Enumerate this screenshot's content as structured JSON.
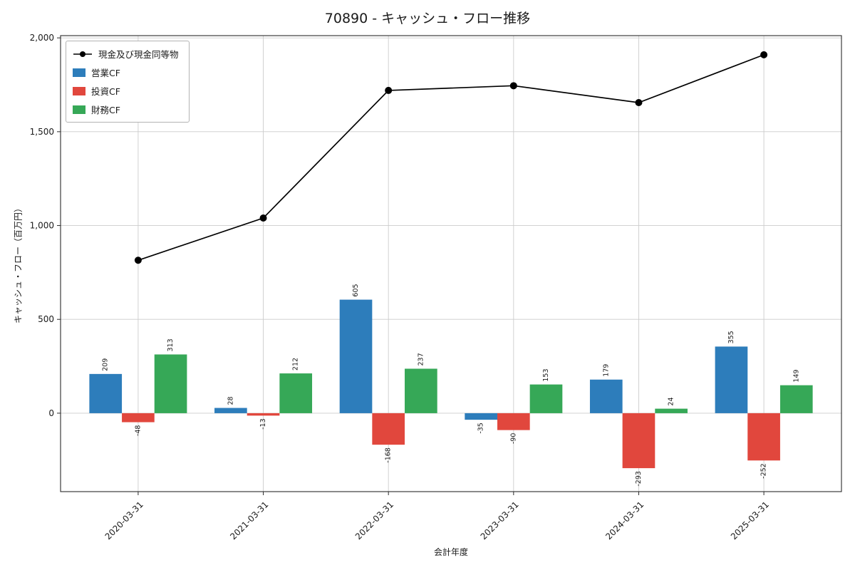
{
  "chart_data": {
    "type": "bar+line",
    "title": "70890 - キャッシュ・フロー推移",
    "xlabel": "会計年度",
    "ylabel": "キャッシュ・フロー（百万円）",
    "categories": [
      "2020-03-31",
      "2021-03-31",
      "2022-03-31",
      "2023-03-31",
      "2024-03-31",
      "2025-03-31"
    ],
    "bar_series": [
      {
        "name": "営業CF",
        "color": "#2d7dbb",
        "values": [
          209,
          28,
          605,
          -35,
          179,
          355
        ]
      },
      {
        "name": "投資CF",
        "color": "#e1473d",
        "values": [
          -48,
          -13,
          -168,
          -90,
          -293,
          -252
        ]
      },
      {
        "name": "財務CF",
        "color": "#36a857",
        "values": [
          313,
          212,
          237,
          153,
          24,
          149
        ]
      }
    ],
    "line_series": {
      "name": "現金及び現金同等物",
      "color": "#000000",
      "values": [
        815,
        1040,
        1720,
        1745,
        1655,
        1910
      ]
    },
    "ylim": [
      -418,
      2012
    ],
    "yticks": [
      0,
      500,
      1000,
      1500,
      2000
    ],
    "grid": true,
    "legend_position": "upper left"
  }
}
